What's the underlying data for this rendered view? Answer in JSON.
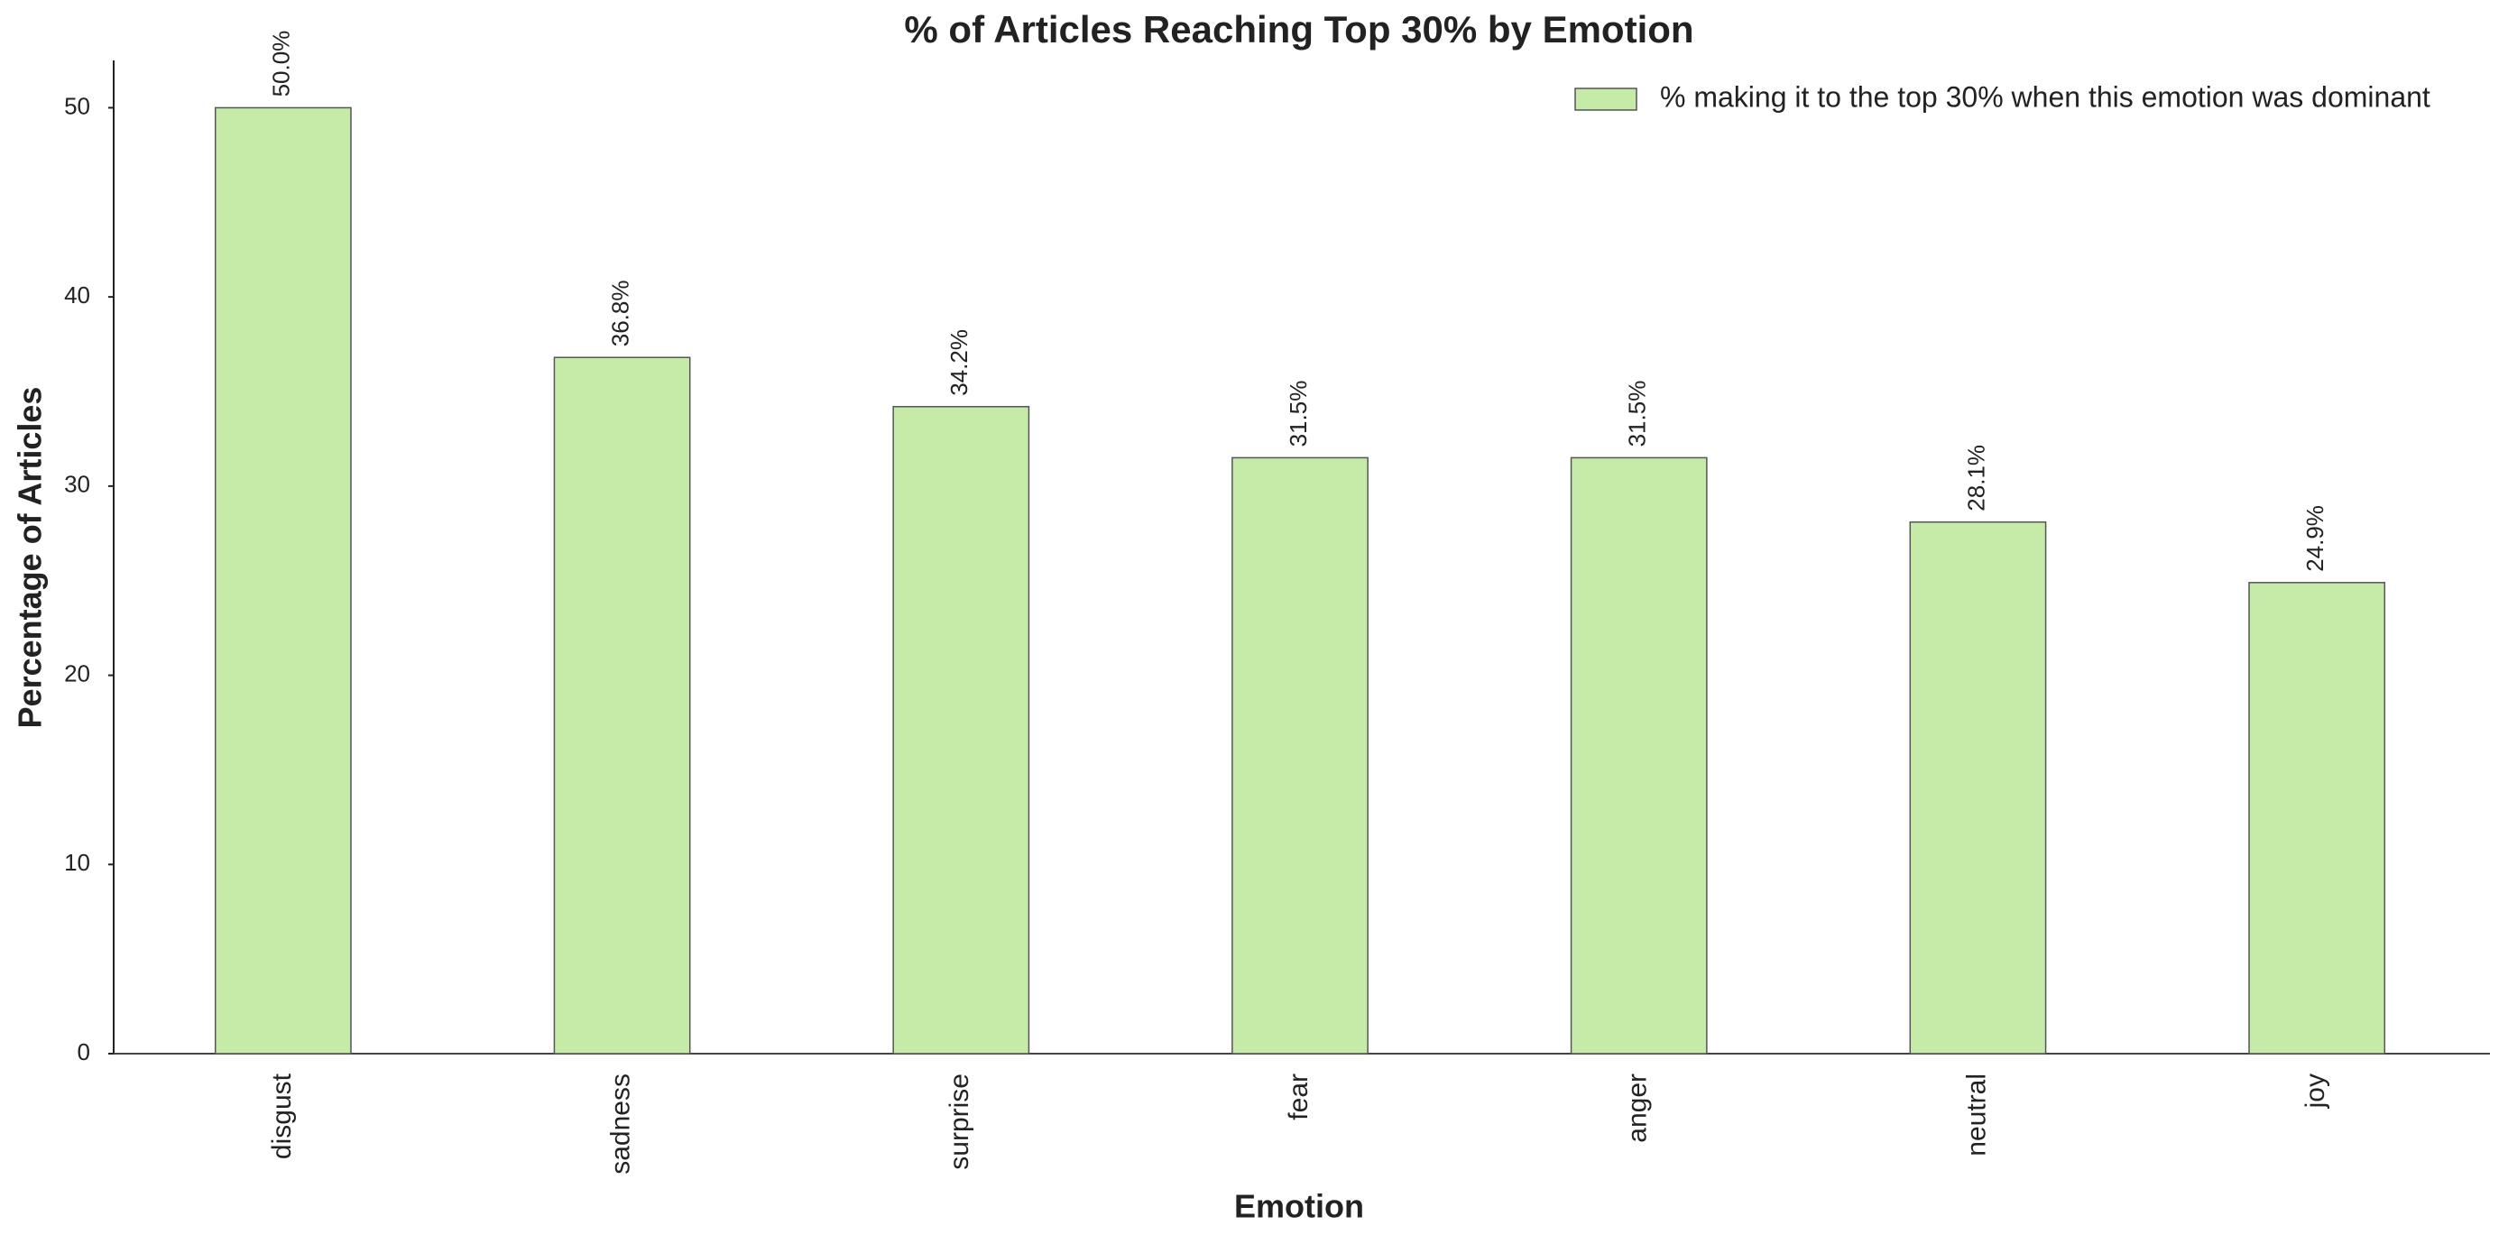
{
  "chart_data": {
    "type": "bar",
    "title": "% of Articles Reaching Top 30% by Emotion",
    "x_label": "Emotion",
    "y_label": "Percentage of Articles",
    "categories": [
      "disgust",
      "sadness",
      "surprise",
      "fear",
      "anger",
      "neutral",
      "joy"
    ],
    "series": [
      {
        "name": "% making it to the top 30% when this emotion was dominant",
        "color": "#c6eaa8",
        "values": [
          50.0,
          36.8,
          34.2,
          31.5,
          31.5,
          28.1,
          24.9
        ],
        "value_labels": [
          "50.0%",
          "36.8%",
          "34.2%",
          "31.5%",
          "31.5%",
          "28.1%",
          "24.9%"
        ]
      }
    ],
    "ylim": [
      0,
      52.5
    ],
    "yticks": [
      0,
      10,
      20,
      30,
      40,
      50
    ],
    "grid": false,
    "legend": "upper right"
  }
}
